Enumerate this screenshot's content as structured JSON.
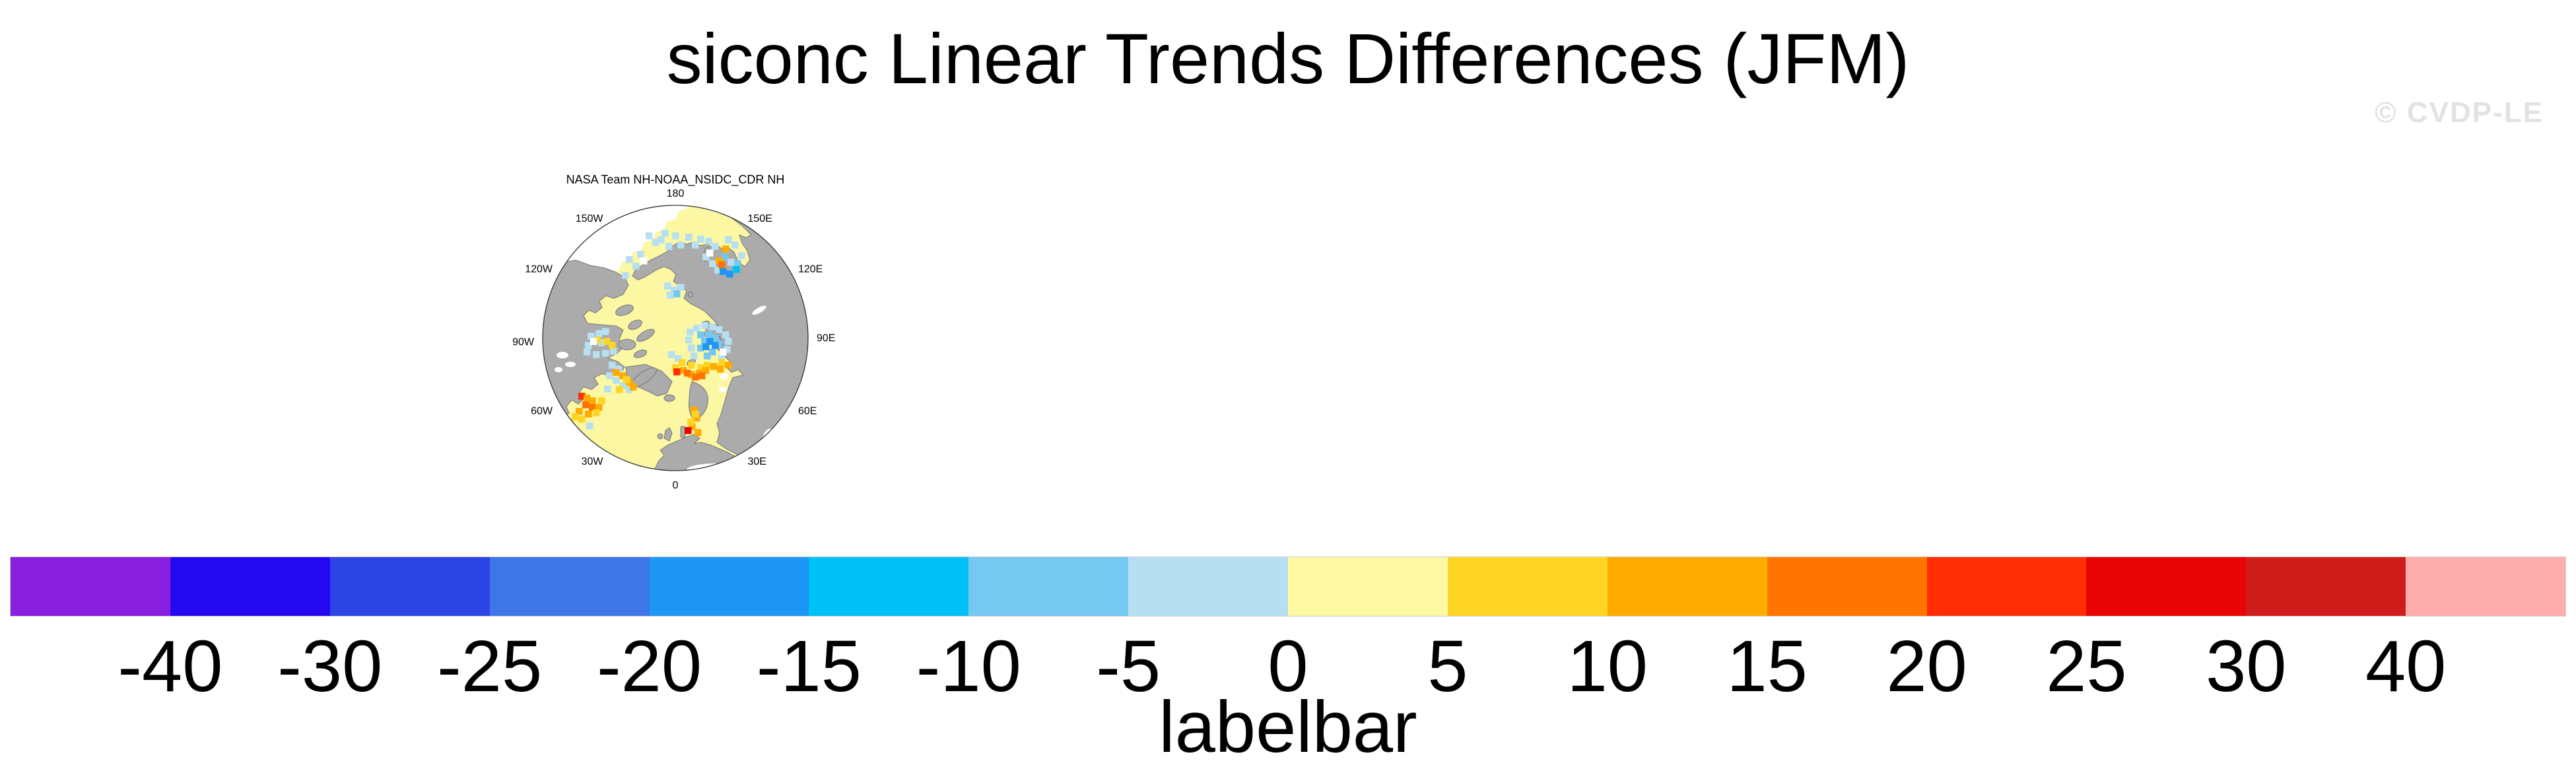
{
  "title": "siconc Linear Trends Differences (JFM)",
  "watermark": "© CVDP-LE",
  "panel": {
    "title": "NASA Team NH-NOAA_NSIDC_CDR NH",
    "lon_labels": [
      {
        "text": "180",
        "angle": 0
      },
      {
        "text": "150E",
        "angle": 30
      },
      {
        "text": "120E",
        "angle": 60
      },
      {
        "text": "90E",
        "angle": 90
      },
      {
        "text": "60E",
        "angle": 120
      },
      {
        "text": "30E",
        "angle": 150
      },
      {
        "text": "0",
        "angle": 180
      },
      {
        "text": "30W",
        "angle": 210
      },
      {
        "text": "60W",
        "angle": 240
      },
      {
        "text": "90W",
        "angle": 270
      },
      {
        "text": "120W",
        "angle": 300
      },
      {
        "text": "150W",
        "angle": 330
      }
    ],
    "colors": {
      "ocean": "#FBF7A3",
      "land": "#ABABAB",
      "coast": "#757575",
      "missing": "#FFFFFF",
      "circle": "#333333"
    },
    "cell_palette": {
      "LB": "#B7DFF2",
      "MB": "#75C8F0",
      "DB": "#1E96F5",
      "CY": "#00C0F8",
      "YO": "#FFD525",
      "OR": "#FFAB00",
      "DO": "#FF7500",
      "SC": "#FF2E04",
      "RD": "#E80404",
      "WH": "#FFFFFF"
    },
    "cells": [
      "1018,352,LB",
      "1038,354,LB",
      "1056,357,LB",
      "1002,348,LB",
      "978,352,LB",
      "988,362,LB",
      "948,388,LB",
      "958,398,LB",
      "942,412,LB",
      "965,380,LB",
      "1008,368,LB",
      "1026,366,LB",
      "996,358,LB",
      "970,390,WH",
      "1048,366,LB",
      "1068,360,LB",
      "1078,368,LB",
      "1098,358,LB",
      "1108,366,LB",
      "1118,382,LB",
      "1064,384,LB",
      "1102,392,LB",
      "1082,404,LB",
      "1074,394,LB",
      "1092,384,MB",
      "1112,394,MB",
      "1090,406,DB",
      "1100,410,DB",
      "1110,403,CY",
      "1084,390,OR",
      "1094,372,OR",
      "1088,396,DO",
      "1070,378,WH",
      "1006,428,LB",
      "1016,434,LB",
      "1010,442,LB",
      "1026,430,LB",
      "1020,440,MB",
      "1012,532,LB",
      "1022,538,LB",
      "1040,498,LB",
      "1050,492,LB",
      "1062,488,LB",
      "1074,490,LB",
      "1084,494,LB",
      "1094,502,LB",
      "1038,510,LB",
      "1098,512,LB",
      "1042,522,LB",
      "1096,524,LB",
      "1088,536,LB",
      "1046,534,LB",
      "1056,502,MB",
      "1068,502,MB",
      "1078,506,MB",
      "1062,512,MB",
      "1084,516,MB",
      "1056,522,MB",
      "1074,528,MB",
      "1066,534,MB",
      "1070,512,DB",
      "1078,518,DB",
      "1064,520,DB",
      "1090,528,WH",
      "1028,544,YO",
      "1042,548,YO",
      "1056,552,YO",
      "1088,544,YO",
      "1018,552,YO",
      "1066,548,YO",
      "1098,548,OR",
      "1030,556,OR",
      "1042,562,OR",
      "1054,560,OR",
      "1064,556,OR",
      "1076,550,OR",
      "1086,554,OR",
      "1036,560,DO",
      "1048,566,DO",
      "1058,564,DO",
      "1020,558,SC",
      "890,504,LB",
      "902,500,LB",
      "912,497,LB",
      "886,518,LB",
      "884,528,LB",
      "898,532,LB",
      "912,530,LB",
      "924,527,LB",
      "906,514,LB",
      "900,510,YO",
      "914,512,YO",
      "922,518,YO",
      "894,512,WH",
      "922,548,LB",
      "932,554,LB",
      "918,564,LB",
      "928,571,LB",
      "938,579,LB",
      "948,585,LB",
      "915,584,LB",
      "928,559,OR",
      "938,564,OR",
      "948,574,OR",
      "954,581,OR",
      "944,570,YO",
      "933,585,YO",
      "876,595,SC",
      "884,598,OR",
      "892,602,OR",
      "882,608,DO",
      "892,612,DO",
      "902,612,OR",
      "872,618,OR",
      "886,622,OR",
      "898,620,YO",
      "906,602,YO",
      "866,626,YO",
      "858,634,YO",
      "876,630,YO",
      "854,640,LB",
      "868,648,LB",
      "888,640,LB",
      "846,622,LB",
      "1046,616,OR",
      "1050,628,OR",
      "1043,641,OR",
      "1052,650,OR",
      "1048,622,YO",
      "1041,634,YO",
      "1037,647,RD"
    ]
  },
  "labelbar": {
    "caption": "labelbar",
    "tick_values": [
      "-40",
      "-30",
      "-25",
      "-20",
      "-15",
      "-10",
      "-5",
      "0",
      "5",
      "10",
      "15",
      "20",
      "25",
      "30",
      "40"
    ],
    "colors": [
      "#8B1FE0",
      "#2308F0",
      "#2E45E5",
      "#3E76E8",
      "#1E96F5",
      "#00C0F8",
      "#75C8F0",
      "#B7DFF2",
      "#FDF8A2",
      "#FFD525",
      "#FFAB00",
      "#FF7500",
      "#FF2E04",
      "#E80404",
      "#D11C1C",
      "#FFAEAE"
    ]
  },
  "chart_data": {
    "type": "heatmap",
    "title": "siconc Linear Trends Differences (JFM)",
    "panel_title": "NASA Team NH-NOAA_NSIDC_CDR NH",
    "projection": "north-polar-stereographic",
    "longitude_ring_labels": [
      "180",
      "150E",
      "120E",
      "90E",
      "60E",
      "30E",
      "0",
      "30W",
      "60W",
      "90W",
      "120W",
      "150W"
    ],
    "colorbar_levels": [
      -40,
      -30,
      -25,
      -20,
      -15,
      -10,
      -5,
      0,
      5,
      10,
      15,
      20,
      25,
      30,
      40
    ],
    "colorbar_colors": [
      "#8B1FE0",
      "#2308F0",
      "#2E45E5",
      "#3E76E8",
      "#1E96F5",
      "#00C0F8",
      "#75C8F0",
      "#B7DFF2",
      "#FDF8A2",
      "#FFD525",
      "#FFAB00",
      "#FF7500",
      "#FF2E04",
      "#E80404",
      "#D11C1C",
      "#FFAEAE"
    ],
    "legend_caption": "labelbar",
    "legend_position": "bottom",
    "watermark": "© CVDP-LE"
  }
}
